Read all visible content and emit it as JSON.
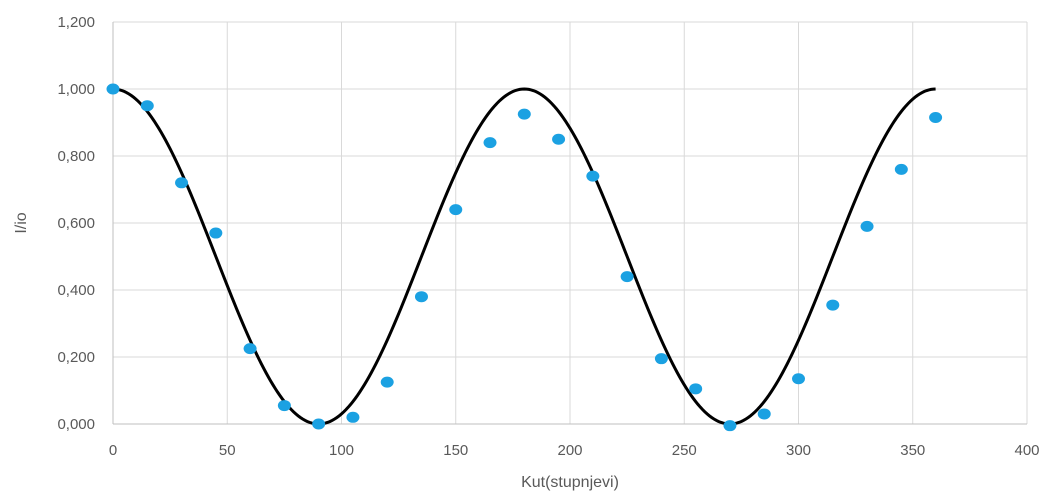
{
  "chart_data": {
    "type": "scatter",
    "xlabel": "Kut(stupnjevi)",
    "ylabel": "I/io",
    "xlim": [
      0,
      400
    ],
    "ylim": [
      0,
      1.2
    ],
    "xticks": [
      0,
      50,
      100,
      150,
      200,
      250,
      300,
      350,
      400
    ],
    "yticks": [
      "0,000",
      "0,200",
      "0,400",
      "0,600",
      "0,800",
      "1,000",
      "1,200"
    ],
    "grid": true,
    "series": [
      {
        "kind": "scatter",
        "color": "#1ba1e2",
        "x": [
          0,
          15,
          30,
          45,
          60,
          75,
          90,
          105,
          120,
          135,
          150,
          165,
          180,
          195,
          210,
          225,
          240,
          255,
          270,
          285,
          300,
          315,
          330,
          345,
          360
        ],
        "y": [
          1.0,
          0.95,
          0.72,
          0.57,
          0.225,
          0.055,
          0.0,
          0.02,
          0.125,
          0.38,
          0.64,
          0.84,
          0.925,
          0.85,
          0.74,
          0.44,
          0.195,
          0.105,
          -0.005,
          0.03,
          0.135,
          0.355,
          0.59,
          0.76,
          0.915
        ]
      },
      {
        "kind": "line",
        "color": "#000000",
        "function": "cos^2",
        "x_range": [
          0,
          360
        ]
      }
    ]
  }
}
